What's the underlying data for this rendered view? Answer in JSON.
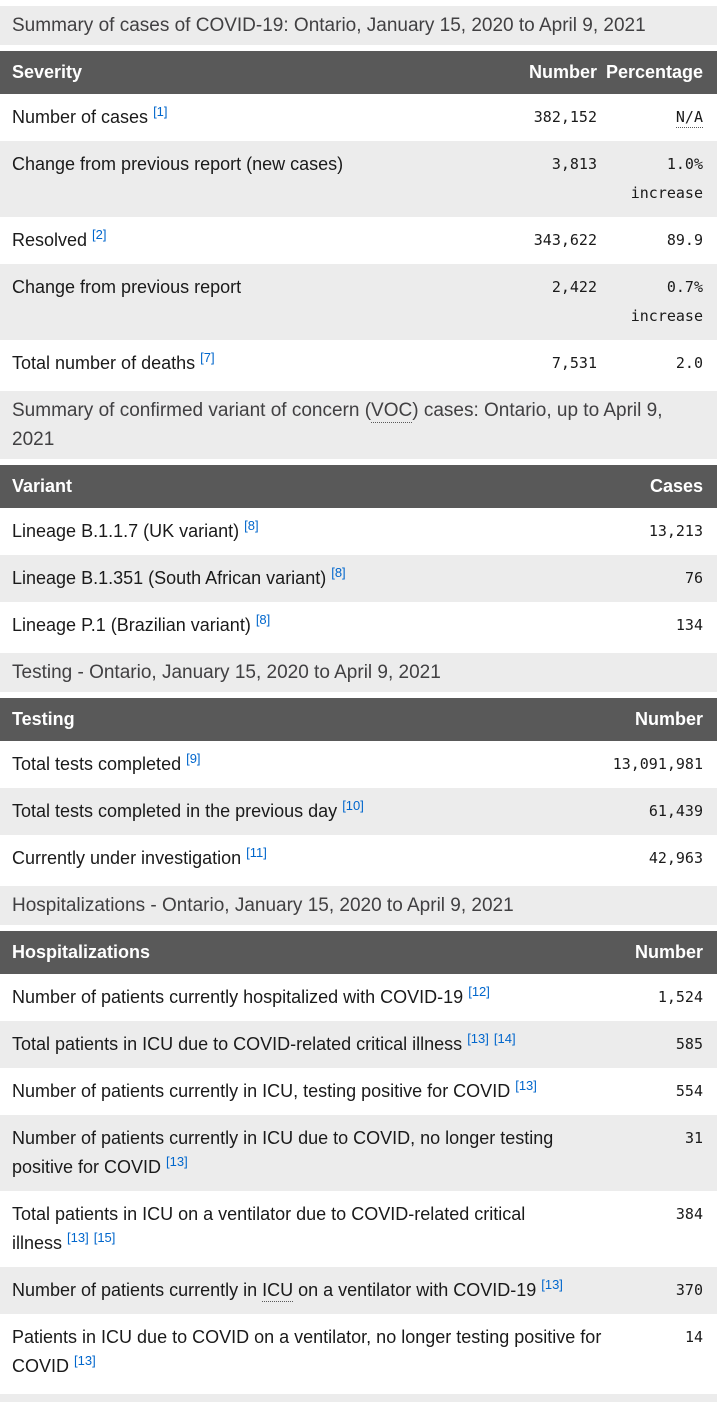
{
  "theme": {
    "header_bg": "#595959",
    "stripe_bg": "#ececec",
    "link_color": "#0066cc",
    "text_color": "#1a1a1a",
    "caption_text_color": "#414042"
  },
  "tables": [
    {
      "id": "case-summary",
      "caption": [
        {
          "t": "Summary of cases of COVID-19: Ontario, January 15, 2020 to April 9, 2021"
        }
      ],
      "headers": [
        "Severity",
        "Number",
        "Percentage"
      ],
      "rows": [
        {
          "label": [
            {
              "t": "Number of cases"
            }
          ],
          "refs": [
            "[1]"
          ],
          "cells": [
            {
              "t": "382,152"
            },
            {
              "t": "N/A",
              "abbr": true
            }
          ]
        },
        {
          "label": [
            {
              "t": "Change from previous report (new cases)"
            }
          ],
          "refs": [],
          "cells": [
            {
              "t": "3,813"
            },
            {
              "t": "1.0% increase"
            }
          ]
        },
        {
          "label": [
            {
              "t": "Resolved"
            }
          ],
          "refs": [
            "[2]"
          ],
          "cells": [
            {
              "t": "343,622"
            },
            {
              "t": "89.9"
            }
          ]
        },
        {
          "label": [
            {
              "t": "Change from previous report"
            }
          ],
          "refs": [],
          "cells": [
            {
              "t": "2,422"
            },
            {
              "t": "0.7% increase"
            }
          ]
        },
        {
          "label": [
            {
              "t": "Total number of deaths"
            }
          ],
          "refs": [
            "[7]"
          ],
          "cells": [
            {
              "t": "7,531"
            },
            {
              "t": "2.0"
            }
          ]
        }
      ]
    },
    {
      "id": "voc-summary",
      "caption": [
        {
          "t": "Summary of confirmed variant of concern ("
        },
        {
          "t": "VOC",
          "abbr": true
        },
        {
          "t": ") cases: Ontario, up to April 9, 2021"
        }
      ],
      "headers": [
        "Variant",
        "Cases"
      ],
      "rows": [
        {
          "label": [
            {
              "t": "Lineage B.1.1.7 (UK variant)"
            }
          ],
          "refs": [
            "[8]"
          ],
          "cells": [
            {
              "t": "13,213"
            }
          ]
        },
        {
          "label": [
            {
              "t": "Lineage B.1.351 (South African variant)"
            }
          ],
          "refs": [
            "[8]"
          ],
          "cells": [
            {
              "t": "76"
            }
          ]
        },
        {
          "label": [
            {
              "t": "Lineage P.1 (Brazilian variant)"
            }
          ],
          "refs": [
            "[8]"
          ],
          "cells": [
            {
              "t": "134"
            }
          ]
        }
      ]
    },
    {
      "id": "testing",
      "caption": [
        {
          "t": "Testing - Ontario, January 15, 2020 to April 9, 2021"
        }
      ],
      "headers": [
        "Testing",
        "Number"
      ],
      "rows": [
        {
          "label": [
            {
              "t": "Total tests completed"
            }
          ],
          "refs": [
            "[9]"
          ],
          "cells": [
            {
              "t": "13,091,981"
            }
          ]
        },
        {
          "label": [
            {
              "t": "Total tests completed in the previous day"
            }
          ],
          "refs": [
            "[10]"
          ],
          "cells": [
            {
              "t": "61,439"
            }
          ]
        },
        {
          "label": [
            {
              "t": "Currently under investigation"
            }
          ],
          "refs": [
            "[11]"
          ],
          "cells": [
            {
              "t": "42,963"
            }
          ]
        }
      ]
    },
    {
      "id": "hospitalizations",
      "caption": [
        {
          "t": "Hospitalizations - Ontario, January 15, 2020 to April 9, 2021"
        }
      ],
      "headers": [
        "Hospitalizations",
        "Number"
      ],
      "rows": [
        {
          "label": [
            {
              "t": "Number of patients currently hospitalized with COVID-19"
            }
          ],
          "refs": [
            "[12]"
          ],
          "cells": [
            {
              "t": "1,524"
            }
          ]
        },
        {
          "label": [
            {
              "t": "Total patients in ICU due to COVID-related critical illness"
            }
          ],
          "refs": [
            "[13]",
            "[14]"
          ],
          "cells": [
            {
              "t": "585"
            }
          ]
        },
        {
          "label": [
            {
              "t": "Number of patients currently in ICU, testing positive for COVID"
            }
          ],
          "refs": [
            "[13]"
          ],
          "cells": [
            {
              "t": "554"
            }
          ]
        },
        {
          "label": [
            {
              "t": "Number of patients currently in ICU due to COVID, no longer testing positive for COVID"
            }
          ],
          "refs": [
            "[13]"
          ],
          "cells": [
            {
              "t": "31"
            }
          ]
        },
        {
          "label": [
            {
              "t": "Total patients in ICU on a ventilator due to COVID-related critical illness"
            }
          ],
          "refs": [
            "[13]",
            "[15]"
          ],
          "cells": [
            {
              "t": "384"
            }
          ]
        },
        {
          "label": [
            {
              "t": "Number of patients currently in "
            },
            {
              "t": "ICU",
              "abbr": true
            },
            {
              "t": " on a ventilator with COVID-19"
            }
          ],
          "refs": [
            "[13]"
          ],
          "cells": [
            {
              "t": "370"
            }
          ]
        },
        {
          "label": [
            {
              "t": "Patients in ICU due to COVID on a ventilator, no longer testing positive for COVID"
            }
          ],
          "refs": [
            "[13]"
          ],
          "cells": [
            {
              "t": "14"
            }
          ]
        }
      ]
    }
  ]
}
